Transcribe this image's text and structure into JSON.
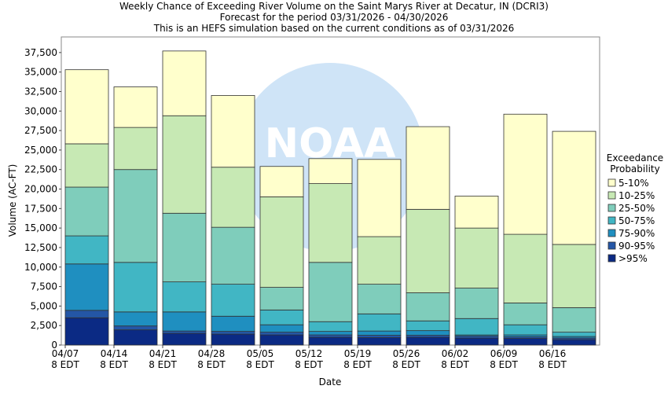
{
  "chart_data": {
    "type": "stacked_bar",
    "title": "Weekly Chance of Exceeding River Volume on the Saint Marys River at Decatur, IN (DCRI3)",
    "subtitle": [
      "Forecast for the period 03/31/2026 - 04/30/2026",
      "This is an HEFS simulation based on the current conditions as of 03/31/2026"
    ],
    "watermark": "NOAA",
    "x_label": "Date",
    "y_label": "Volume (AC-FT)",
    "legend_title": "Exceedance Probability",
    "categories": [
      "04/07\n8 EDT",
      "04/14\n8 EDT",
      "04/21\n8 EDT",
      "04/28\n8 EDT",
      "05/05\n8 EDT",
      "05/12\n8 EDT",
      "05/19\n8 EDT",
      "05/26\n8 EDT",
      "06/02\n8 EDT",
      "06/09\n8 EDT",
      "06/16\n8 EDT"
    ],
    "series": [
      {
        "name": ">95%",
        "color": "#0b2a84",
        "values": [
          3500,
          1950,
          1500,
          1400,
          1300,
          1000,
          950,
          1000,
          900,
          850,
          700
        ]
      },
      {
        "name": "90-95%",
        "color": "#2456a6",
        "values": [
          950,
          500,
          300,
          350,
          350,
          300,
          300,
          250,
          250,
          200,
          200
        ]
      },
      {
        "name": "75-90%",
        "color": "#1f8fc0",
        "values": [
          5950,
          1800,
          2450,
          1950,
          950,
          450,
          550,
          600,
          150,
          250,
          200
        ]
      },
      {
        "name": "50-75%",
        "color": "#41b6c4",
        "values": [
          3600,
          6350,
          3850,
          4100,
          1900,
          1250,
          2200,
          1250,
          2100,
          1300,
          550
        ]
      },
      {
        "name": "25-50%",
        "color": "#7fcdbb",
        "values": [
          6250,
          11900,
          8800,
          7300,
          2900,
          7600,
          3800,
          3600,
          3900,
          2800,
          3150
        ]
      },
      {
        "name": "10-25%",
        "color": "#c7e9b4",
        "values": [
          5550,
          5400,
          12500,
          7700,
          11600,
          10100,
          6100,
          10700,
          7700,
          8800,
          8100
        ]
      },
      {
        "name": "5-10%",
        "color": "#ffffcc",
        "values": [
          9500,
          5200,
          8300,
          9200,
          3900,
          3200,
          9900,
          10600,
          4100,
          15400,
          14500
        ]
      }
    ],
    "ylim": [
      0,
      39500
    ],
    "yticks": [
      0,
      {
        "value": 2500,
        "label": "2,500"
      },
      {
        "value": 5000,
        "label": "5,000"
      },
      {
        "value": 7500,
        "label": "7,500"
      },
      {
        "value": 10000,
        "label": "10,000"
      },
      {
        "value": 12500,
        "label": "12,500"
      },
      {
        "value": 15000,
        "label": "15,000"
      },
      {
        "value": 17500,
        "label": "17,500"
      },
      {
        "value": 20000,
        "label": "20,000"
      },
      {
        "value": 22500,
        "label": "22,500"
      },
      {
        "value": 25000,
        "label": "25,000"
      },
      {
        "value": 27500,
        "label": "27,500"
      },
      {
        "value": 30000,
        "label": "30,000"
      },
      {
        "value": 32500,
        "label": "32,500"
      },
      {
        "value": 35000,
        "label": "35,000"
      },
      {
        "value": 37500,
        "label": "37,500"
      }
    ],
    "grid": false,
    "legend": "right"
  }
}
